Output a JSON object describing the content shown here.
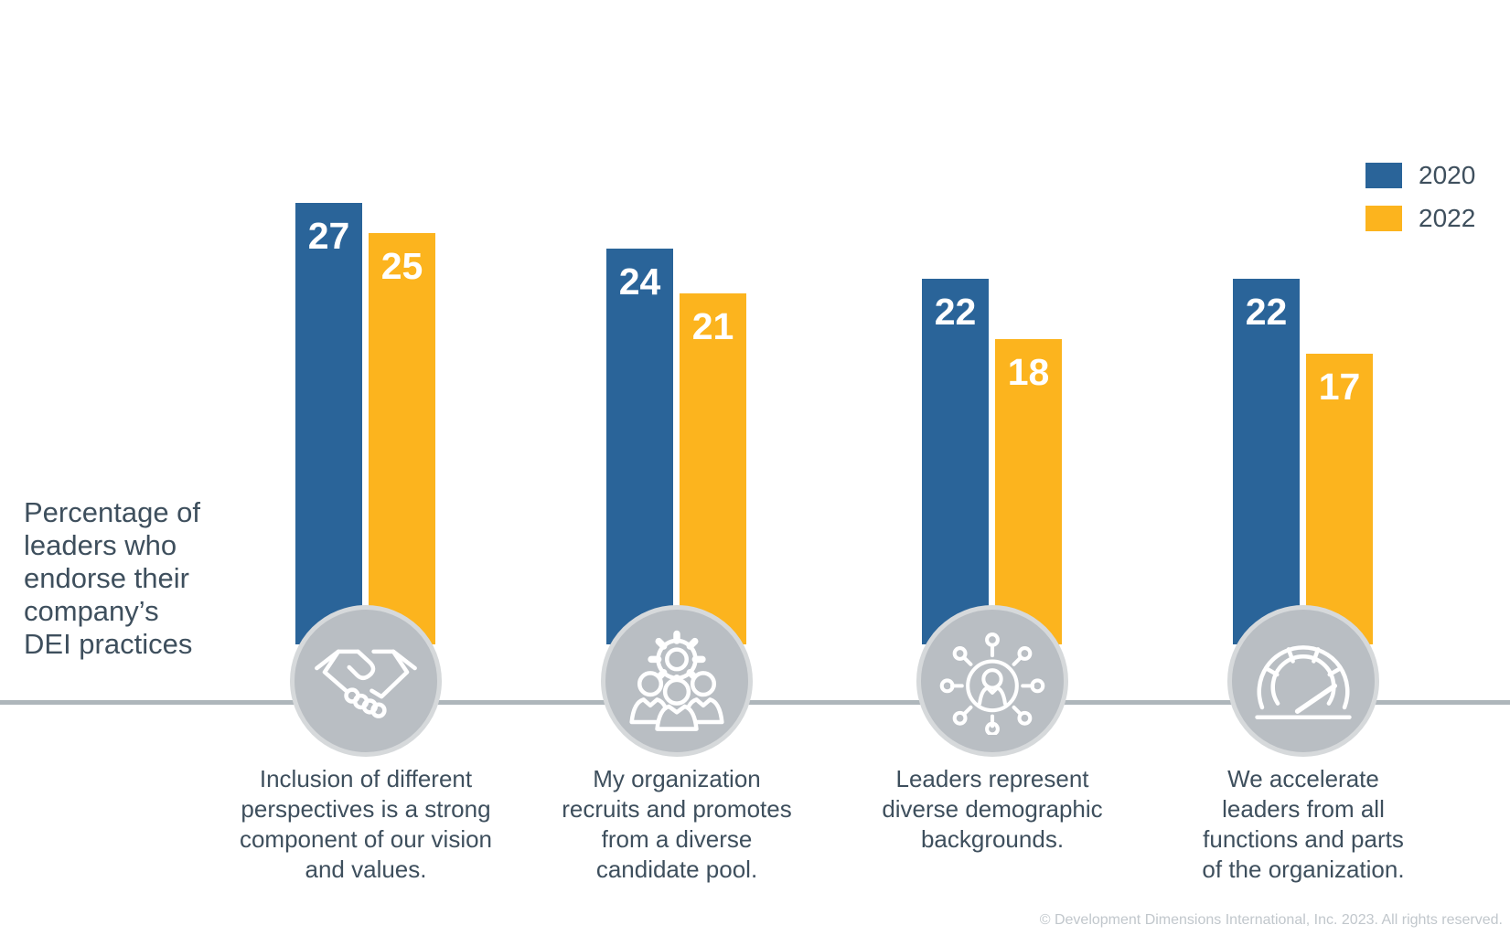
{
  "chart_data": {
    "type": "bar",
    "title": "Percentage of leaders who endorse their company’s DEI practices",
    "title_lines": [
      "Percentage of",
      "leaders who",
      "endorse their",
      "company’s",
      "DEI practices"
    ],
    "categories": [
      "Inclusion of different perspectives is a strong component of our vision and values.",
      "My organization recruits and promotes from a diverse candidate pool.",
      "Leaders represent diverse demographic backgrounds.",
      "We accelerate leaders from all functions and parts of the organization."
    ],
    "category_lines": [
      [
        "Inclusion of different",
        "perspectives is a strong",
        "component of our vision",
        "and values."
      ],
      [
        "My organization",
        "recruits and promotes",
        "from a diverse",
        "candidate pool."
      ],
      [
        "Leaders represent",
        "diverse demographic",
        "backgrounds."
      ],
      [
        "We accelerate",
        "leaders from all",
        "functions and parts",
        "of the organization."
      ]
    ],
    "category_icons": [
      "handshake-icon",
      "gear-people-icon",
      "people-network-icon",
      "speedometer-icon"
    ],
    "series": [
      {
        "name": "2020",
        "color": "#2a6499",
        "values": [
          27,
          24,
          22,
          22
        ]
      },
      {
        "name": "2022",
        "color": "#fcb41e",
        "values": [
          25,
          21,
          18,
          17
        ]
      }
    ],
    "value_labels": "inside-top",
    "grid": false,
    "axes_shown": false,
    "legend_position": "top-right"
  },
  "colors": {
    "series_2020": "#2a6499",
    "series_2022": "#fcb41e",
    "text": "#3e4f5d",
    "bar_value_text": "#ffffff",
    "icon_circle_fill": "#b9bec3",
    "icon_circle_ring": "#d6d9db",
    "axis_line": "#aeb6bb",
    "footer_text": "#c1c7cc",
    "background": "#ffffff"
  },
  "footer": {
    "copyright": "© Development Dimensions International, Inc. 2023. All rights reserved."
  }
}
